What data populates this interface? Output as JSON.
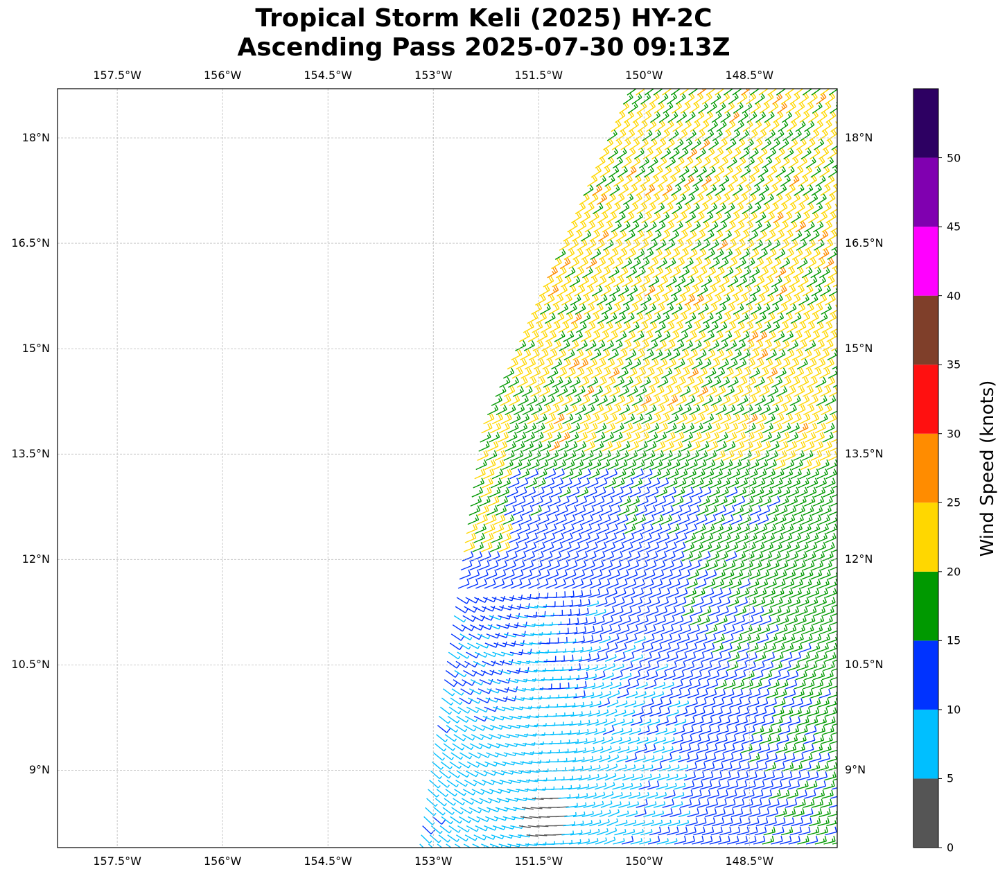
{
  "title": {
    "line1": "Tropical Storm Keli (2025) HY-2C",
    "line2": "Ascending Pass 2025-07-30 09:13Z"
  },
  "map": {
    "lon_range": [
      -158.35,
      -147.25
    ],
    "lat_range": [
      7.9,
      18.7
    ],
    "gridlines": true,
    "lon_ticks": [
      {
        "value": -157.5,
        "label": "157.5°W"
      },
      {
        "value": -156.0,
        "label": "156°W"
      },
      {
        "value": -154.5,
        "label": "154.5°W"
      },
      {
        "value": -153.0,
        "label": "153°W"
      },
      {
        "value": -151.5,
        "label": "151.5°W"
      },
      {
        "value": -150.0,
        "label": "150°W"
      },
      {
        "value": -148.5,
        "label": "148.5°W"
      }
    ],
    "lat_ticks": [
      {
        "value": 18.0,
        "label": "18°N"
      },
      {
        "value": 16.5,
        "label": "16.5°N"
      },
      {
        "value": 15.0,
        "label": "15°N"
      },
      {
        "value": 13.5,
        "label": "13.5°N"
      },
      {
        "value": 12.0,
        "label": "12°N"
      },
      {
        "value": 10.5,
        "label": "10.5°N"
      },
      {
        "value": 9.0,
        "label": "9°N"
      }
    ]
  },
  "colorbar": {
    "label": "Wind Speed (knots)",
    "bins": [
      {
        "min": 0,
        "max": 5,
        "color": "#555555"
      },
      {
        "min": 5,
        "max": 10,
        "color": "#00bfff"
      },
      {
        "min": 10,
        "max": 15,
        "color": "#0033ff"
      },
      {
        "min": 15,
        "max": 20,
        "color": "#009900"
      },
      {
        "min": 20,
        "max": 25,
        "color": "#ffd700"
      },
      {
        "min": 25,
        "max": 30,
        "color": "#ff8c00"
      },
      {
        "min": 30,
        "max": 35,
        "color": "#ff1010"
      },
      {
        "min": 35,
        "max": 40,
        "color": "#7f3f2a"
      },
      {
        "min": 40,
        "max": 45,
        "color": "#ff00ff"
      },
      {
        "min": 45,
        "max": 50,
        "color": "#8000b0"
      },
      {
        "min": 50,
        "max": 55,
        "color": "#2d0062"
      }
    ],
    "ticks": [
      "0",
      "5",
      "10",
      "15",
      "20",
      "25",
      "30",
      "35",
      "40",
      "45",
      "50"
    ]
  },
  "swath": {
    "west_edge": [
      [
        -153.2,
        7.9
      ],
      [
        -152.3,
        13.9
      ],
      [
        -150.2,
        18.7
      ]
    ],
    "east_edge_lon": -147.25,
    "storm_center": [
      -151.6,
      8.6
    ],
    "low_wind_patch": [
      -151.5,
      8.3
    ]
  }
}
